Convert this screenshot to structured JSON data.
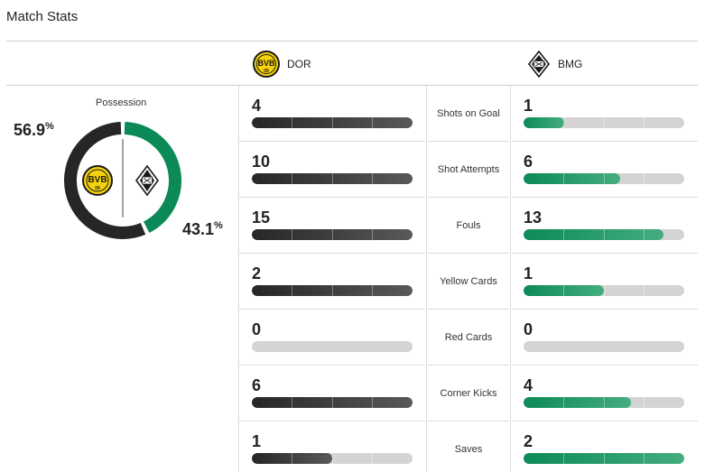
{
  "page": {
    "title": "Match Stats"
  },
  "teams": {
    "home": {
      "abbr": "DOR",
      "logo_text": "BVB",
      "logo_sub": "09",
      "color": "#2a2a2a",
      "badge_color": "#f5d20a"
    },
    "away": {
      "abbr": "BMG",
      "color": "#0b8a57"
    }
  },
  "possession": {
    "label": "Possession",
    "home_pct": "56.9",
    "away_pct": "43.1",
    "unit": "%",
    "home_value": 56.9,
    "away_value": 43.1
  },
  "stats": [
    {
      "label": "Shots on Goal",
      "home": "4",
      "away": "1",
      "home_fill": 1.0,
      "away_fill": 0.25
    },
    {
      "label": "Shot Attempts",
      "home": "10",
      "away": "6",
      "home_fill": 1.0,
      "away_fill": 0.6
    },
    {
      "label": "Fouls",
      "home": "15",
      "away": "13",
      "home_fill": 1.0,
      "away_fill": 0.87
    },
    {
      "label": "Yellow Cards",
      "home": "2",
      "away": "1",
      "home_fill": 1.0,
      "away_fill": 0.5
    },
    {
      "label": "Red Cards",
      "home": "0",
      "away": "0",
      "home_fill": 0.0,
      "away_fill": 0.0
    },
    {
      "label": "Corner Kicks",
      "home": "6",
      "away": "4",
      "home_fill": 1.0,
      "away_fill": 0.67
    },
    {
      "label": "Saves",
      "home": "1",
      "away": "2",
      "home_fill": 0.5,
      "away_fill": 1.0
    }
  ]
}
